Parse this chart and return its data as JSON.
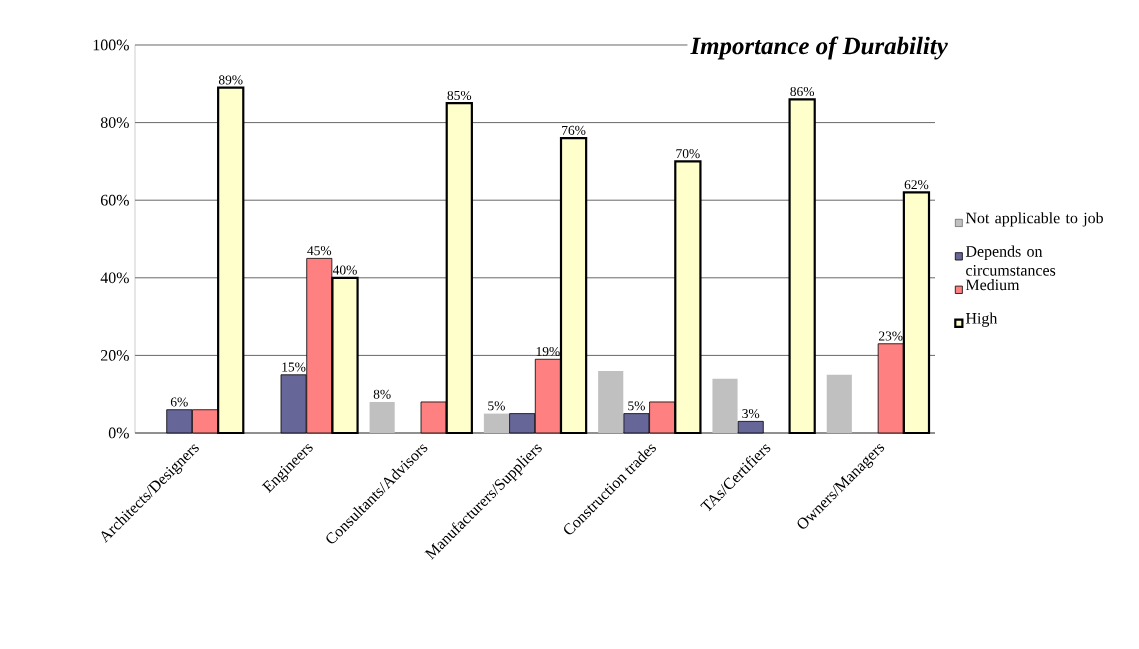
{
  "chart_data": {
    "type": "bar",
    "title": "Importance of Durability",
    "categories": [
      "Architects/Designers",
      "Engineers",
      "Consultants/Advisors",
      "Manufacturers/Suppliers",
      "Construction trades",
      "TAs/Certifiers",
      "Owners/Managers"
    ],
    "series": [
      {
        "name": "Not applicable to job",
        "color": "#c0c0c0",
        "values": [
          null,
          null,
          8,
          5,
          16,
          14,
          15
        ],
        "value_labels": [
          null,
          null,
          "8%",
          "5%",
          null,
          null,
          null
        ]
      },
      {
        "name": "Depends on circumstances",
        "color": "#666699",
        "values": [
          6,
          15,
          null,
          5,
          5,
          3,
          null
        ],
        "value_labels": [
          "6%",
          "15%",
          null,
          null,
          "5%",
          "3%",
          null
        ]
      },
      {
        "name": "Medium",
        "color": "#ff8080",
        "values": [
          6,
          45,
          8,
          19,
          8,
          null,
          23
        ],
        "value_labels": [
          null,
          "45%",
          null,
          "19%",
          null,
          null,
          "23%"
        ]
      },
      {
        "name": "High",
        "color": "#ffffcc",
        "values": [
          89,
          40,
          85,
          76,
          70,
          86,
          62
        ],
        "value_labels": [
          "89%",
          "40%",
          "85%",
          "76%",
          "70%",
          "86%",
          "62%"
        ]
      }
    ],
    "ylim": [
      0,
      100
    ],
    "yticks": [
      {
        "value": 0,
        "label": "0%"
      },
      {
        "value": 20,
        "label": "20%"
      },
      {
        "value": 40,
        "label": "40%"
      },
      {
        "value": 60,
        "label": "60%"
      },
      {
        "value": 80,
        "label": "80%"
      },
      {
        "value": 100,
        "label": "100%"
      }
    ],
    "grid": "y",
    "legend": "right"
  }
}
